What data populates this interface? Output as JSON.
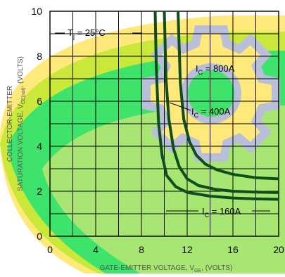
{
  "chart_data": {
    "type": "line",
    "title": "",
    "xlabel_main": "GATE-EMITTER VOLTAGE, V",
    "xlabel_sub": "GE",
    "xlabel_tail": ", (VOLTS)",
    "ylabel_line1": "COLLECTOR-EMITTER",
    "ylabel_line2_main": "SATURATION VOLTAGE, V",
    "ylabel_line2_sub": "CE(sat)",
    "ylabel_line2_tail": ", (VOLTS)",
    "xlim": [
      0,
      20
    ],
    "ylim": [
      0,
      10
    ],
    "x_ticks": [
      0,
      4,
      8,
      12,
      16,
      20
    ],
    "y_ticks": [
      0,
      2,
      4,
      6,
      8,
      10
    ],
    "grid": true,
    "annotation_main": "T",
    "annotation_sub": "j",
    "annotation_tail": " = 25°C",
    "series_color": "#0f4d1c",
    "series": [
      {
        "name": "IC = 160A",
        "label_main": "I",
        "label_sub": "C",
        "label_tail": " = 160A",
        "x": [
          9.2,
          9.3,
          9.5,
          9.8,
          10.2,
          11.0,
          12.0,
          14.0,
          16.0,
          18.0,
          20.0
        ],
        "y": [
          10.0,
          7.5,
          5.0,
          3.6,
          2.7,
          2.2,
          1.95,
          1.78,
          1.7,
          1.66,
          1.64
        ]
      },
      {
        "name": "IC = 400A",
        "label_main": "I",
        "label_sub": "C",
        "label_tail": " = 400A",
        "x": [
          10.0,
          10.15,
          10.4,
          10.8,
          11.3,
          12.0,
          13.0,
          14.5,
          16.0,
          18.0,
          20.0
        ],
        "y": [
          10.0,
          7.0,
          5.2,
          3.9,
          3.1,
          2.55,
          2.25,
          2.08,
          2.0,
          1.96,
          1.94
        ]
      },
      {
        "name": "IC = 800A",
        "label_main": "I",
        "label_sub": "C",
        "label_tail": " = 800A",
        "x": [
          11.2,
          11.4,
          11.7,
          12.2,
          12.8,
          13.6,
          14.6,
          16.0,
          18.0,
          20.0
        ],
        "y": [
          10.0,
          6.8,
          5.2,
          4.2,
          3.6,
          3.2,
          2.95,
          2.75,
          2.6,
          2.55
        ]
      }
    ]
  }
}
